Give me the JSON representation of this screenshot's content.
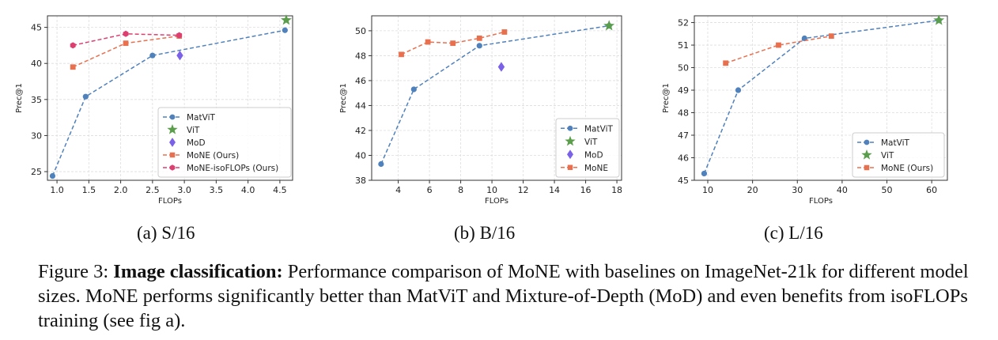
{
  "colors": {
    "matvit": "#4f81bd",
    "vit": "#5a9e4b",
    "mod": "#7b61e8",
    "mone": "#e8704f",
    "mone_iso": "#dc3f70",
    "grid": "#dddddd"
  },
  "chart_data": [
    {
      "type": "line",
      "id": "s16",
      "subcaption": "(a) S/16",
      "xlabel": "FLOPs",
      "ylabel": "Prec@1",
      "xlim": [
        0.85,
        4.7
      ],
      "ylim": [
        23.8,
        46.6
      ],
      "xticks": [
        1.0,
        1.5,
        2.0,
        2.5,
        3.0,
        3.5,
        4.0,
        4.5
      ],
      "xtick_labels": [
        "1.0",
        "1.5",
        "2.0",
        "2.5",
        "3.0",
        "3.5",
        "4.0",
        "4.5"
      ],
      "yticks": [
        25,
        30,
        35,
        40,
        45
      ],
      "ytick_labels": [
        "25",
        "30",
        "35",
        "40",
        "45"
      ],
      "grid": true,
      "legend_position": "bottom-right",
      "series": [
        {
          "name": "MatViT",
          "key": "matvit",
          "style": "line",
          "marker": "circle",
          "x": [
            0.93,
            1.45,
            2.5,
            4.58
          ],
          "y": [
            24.4,
            35.4,
            41.1,
            44.6
          ]
        },
        {
          "name": "ViT",
          "key": "vit",
          "style": "point",
          "marker": "star",
          "x": [
            4.6
          ],
          "y": [
            46.0
          ]
        },
        {
          "name": "MoD",
          "key": "mod",
          "style": "point",
          "marker": "diamond",
          "x": [
            2.93
          ],
          "y": [
            41.1
          ]
        },
        {
          "name": "MoNE (Ours)",
          "key": "mone",
          "style": "line",
          "marker": "square",
          "x": [
            1.25,
            2.08,
            2.92
          ],
          "y": [
            39.5,
            42.8,
            43.8
          ]
        },
        {
          "name": "MoNE-isoFLOPs (Ours)",
          "key": "mone_iso",
          "style": "line",
          "marker": "hexagon",
          "x": [
            1.25,
            2.08,
            2.92
          ],
          "y": [
            42.5,
            44.1,
            43.9
          ]
        }
      ]
    },
    {
      "type": "line",
      "id": "b16",
      "subcaption": "(b) B/16",
      "xlabel": "FLOPs",
      "ylabel": "Prec@1",
      "xlim": [
        2.3,
        18.3
      ],
      "ylim": [
        38.0,
        51.2
      ],
      "xticks": [
        4,
        6,
        8,
        10,
        12,
        14,
        16,
        18
      ],
      "xtick_labels": [
        "4",
        "6",
        "8",
        "10",
        "12",
        "14",
        "16",
        "18"
      ],
      "yticks": [
        38,
        40,
        42,
        44,
        46,
        48,
        50
      ],
      "ytick_labels": [
        "38",
        "40",
        "42",
        "44",
        "46",
        "48",
        "50"
      ],
      "grid": true,
      "legend_position": "bottom-right",
      "series": [
        {
          "name": "MatViT",
          "key": "matvit",
          "style": "line",
          "marker": "circle",
          "x": [
            2.9,
            5.0,
            9.2,
            17.5
          ],
          "y": [
            39.3,
            45.3,
            48.8,
            50.4
          ]
        },
        {
          "name": "ViT",
          "key": "vit",
          "style": "point",
          "marker": "star",
          "x": [
            17.5
          ],
          "y": [
            50.4
          ]
        },
        {
          "name": "MoD",
          "key": "mod",
          "style": "point",
          "marker": "diamond",
          "x": [
            10.6
          ],
          "y": [
            47.1
          ]
        },
        {
          "name": "MoNE",
          "key": "mone",
          "style": "line",
          "marker": "square",
          "x": [
            4.2,
            5.9,
            7.5,
            9.2,
            10.8
          ],
          "y": [
            48.1,
            49.1,
            49.0,
            49.4,
            49.9
          ]
        }
      ]
    },
    {
      "type": "line",
      "id": "l16",
      "subcaption": "(c) L/16",
      "xlabel": "FLOPs",
      "ylabel": "Prec@1",
      "xlim": [
        7.0,
        63.5
      ],
      "ylim": [
        45.0,
        52.3
      ],
      "xticks": [
        10,
        20,
        30,
        40,
        50,
        60
      ],
      "xtick_labels": [
        "10",
        "20",
        "30",
        "40",
        "50",
        "60"
      ],
      "yticks": [
        45,
        46,
        47,
        48,
        49,
        50,
        51,
        52
      ],
      "ytick_labels": [
        "45",
        "46",
        "47",
        "48",
        "49",
        "50",
        "51",
        "52"
      ],
      "grid": true,
      "legend_position": "bottom-right",
      "series": [
        {
          "name": "MatViT",
          "key": "matvit",
          "style": "line",
          "marker": "circle",
          "x": [
            9.2,
            16.8,
            31.6,
            61.6
          ],
          "y": [
            45.3,
            49.0,
            51.3,
            52.1
          ]
        },
        {
          "name": "ViT",
          "key": "vit",
          "style": "point",
          "marker": "star",
          "x": [
            61.6
          ],
          "y": [
            52.1
          ]
        },
        {
          "name": "MoNE (Ours)",
          "key": "mone",
          "style": "line",
          "marker": "square",
          "x": [
            14.0,
            25.8,
            37.6
          ],
          "y": [
            50.2,
            51.0,
            51.4
          ]
        }
      ]
    }
  ],
  "caption": {
    "prefix": "Figure 3: ",
    "bold": "Image classification:",
    "text": " Performance comparison of MoNE with baselines on ImageNet-21k for different model sizes. MoNE performs significantly better than MatViT and Mixture-of-Depth (MoD) and even benefits from isoFLOPs training (see fig a)."
  }
}
